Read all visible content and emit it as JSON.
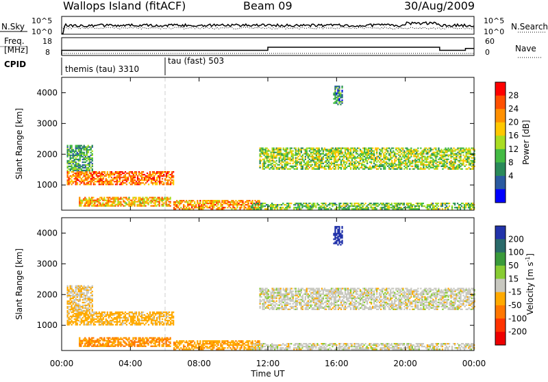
{
  "header": {
    "station": "Wallops Island (fitACF)",
    "beam": "Beam 09",
    "date": "30/Aug/2009"
  },
  "nsky_panel": {
    "left_label": "N.Sky",
    "left_ticks": [
      "10^5",
      "10^0"
    ],
    "right_label": "N.Search",
    "right_ticks": [
      "10^5",
      "10^0"
    ]
  },
  "freq_panel": {
    "left_label_1": "Freq.",
    "left_label_2": "[MHz]",
    "left_ticks": [
      "18",
      "8"
    ],
    "right_label": "Nave",
    "right_ticks": [
      "60",
      "0"
    ]
  },
  "cpid": {
    "label": "CPID",
    "modes": [
      {
        "name": "themis (tau) 3310",
        "start_hour": 0
      },
      {
        "name": "tau (fast) 503",
        "start_hour": 6
      }
    ]
  },
  "power_colorbar": {
    "label": "Power [dB]",
    "ticks": [
      "28",
      "24",
      "20",
      "16",
      "12",
      "8",
      "4"
    ],
    "colors": [
      "#ff0000",
      "#ff5000",
      "#ff9000",
      "#ffc800",
      "#aadd22",
      "#44bb44",
      "#2a8a5a",
      "#2a5aa0",
      "#0000ff"
    ]
  },
  "velocity_colorbar": {
    "label": "Velocity [m s",
    "label_sup": "-1",
    "label_end": "]",
    "ticks": [
      "200",
      "100",
      "50",
      "15",
      "-15",
      "-50",
      "-100",
      "-200"
    ],
    "colors": [
      "#2233aa",
      "#2a6a6a",
      "#3a9a3a",
      "#88cc33",
      "#c8c8c0",
      "#ffaa00",
      "#ff7700",
      "#ff3300",
      "#ee0000"
    ]
  },
  "chart_data": {
    "type": "heatmap",
    "xlabel": "Time UT",
    "ylabel": "Slant Range [km]",
    "xlim": [
      0,
      24
    ],
    "ylim": [
      180,
      4500
    ],
    "x_ticks": [
      "00:00",
      "04:00",
      "08:00",
      "12:00",
      "16:00",
      "20:00",
      "00:00"
    ],
    "y_ticks": [
      1000,
      2000,
      3000,
      4000
    ],
    "panels": [
      "power",
      "velocity"
    ],
    "echo_regions": [
      {
        "t0": 0.3,
        "t1": 6.5,
        "r0": 1000,
        "r1": 1450,
        "power": 24,
        "velocity": -30
      },
      {
        "t0": 0.3,
        "t1": 1.8,
        "r0": 1450,
        "r1": 2300,
        "power": 10,
        "velocity": -15
      },
      {
        "t0": 1.0,
        "t1": 6.3,
        "r0": 300,
        "r1": 600,
        "power": 20,
        "velocity": -50
      },
      {
        "t0": 6.5,
        "t1": 11.5,
        "r0": 200,
        "r1": 500,
        "power": 22,
        "velocity": -40
      },
      {
        "t0": 11.0,
        "t1": 24.0,
        "r0": 200,
        "r1": 400,
        "power": 12,
        "velocity": 0
      },
      {
        "t0": 11.5,
        "t1": 24.0,
        "r0": 1500,
        "r1": 2200,
        "power": 14,
        "velocity": 0
      },
      {
        "t0": 15.8,
        "t1": 16.3,
        "r0": 3600,
        "r1": 4200,
        "power": 8,
        "velocity": 200
      }
    ],
    "nsky_series": "approx. constant near 10^3",
    "frequency_mhz": [
      {
        "t0": 0.0,
        "t1": 12.0,
        "value": 10.5
      },
      {
        "t0": 12.0,
        "t1": 22.0,
        "value": 13
      },
      {
        "t0": 22.0,
        "t1": 23.5,
        "value": 10.5
      },
      {
        "t0": 23.5,
        "t1": 24.0,
        "value": 12
      }
    ]
  }
}
